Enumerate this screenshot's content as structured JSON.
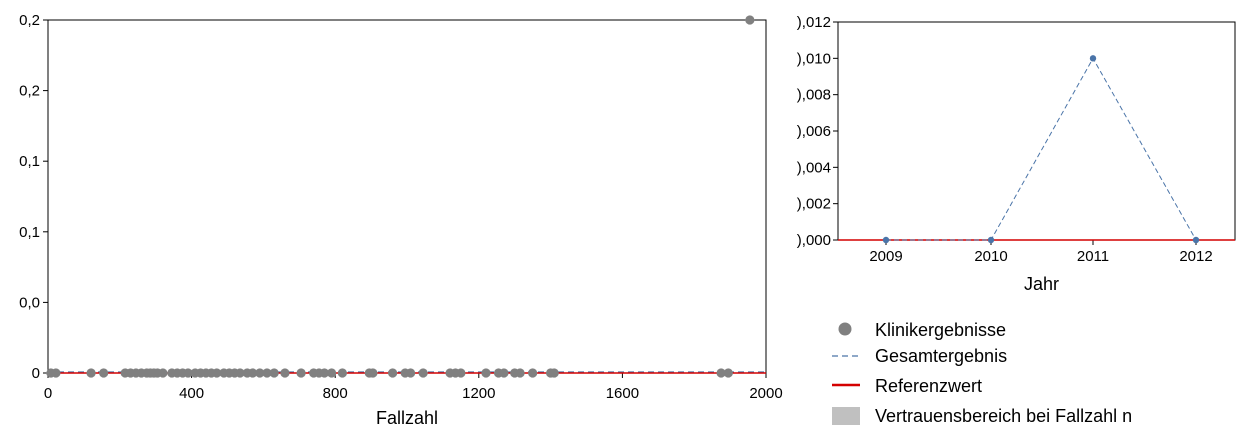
{
  "chart_data": [
    {
      "type": "scatter",
      "xlabel": "Fallzahl",
      "ylabel": "",
      "xlim": [
        0,
        2000
      ],
      "ylim": [
        0,
        0.25
      ],
      "x_ticks": [
        0,
        400,
        800,
        1200,
        1600,
        2000
      ],
      "x_tick_labels": [
        "0",
        "400",
        "800",
        "1200",
        "1600",
        "2000"
      ],
      "y_ticks": [
        0,
        0.05,
        0.1,
        0.15,
        0.2,
        0.25
      ],
      "y_tick_labels": [
        "0",
        "0,0",
        "0,1",
        "0,1",
        "0,2",
        "0,2"
      ],
      "reference_value": 0,
      "overall_value": 0,
      "series": [
        {
          "name": "Klinikergebnisse",
          "points": [
            [
              8,
              0
            ],
            [
              22,
              0
            ],
            [
              120,
              0
            ],
            [
              155,
              0
            ],
            [
              215,
              0
            ],
            [
              230,
              0
            ],
            [
              245,
              0
            ],
            [
              260,
              0
            ],
            [
              275,
              0
            ],
            [
              285,
              0
            ],
            [
              295,
              0
            ],
            [
              305,
              0
            ],
            [
              320,
              0
            ],
            [
              345,
              0
            ],
            [
              360,
              0
            ],
            [
              375,
              0
            ],
            [
              390,
              0
            ],
            [
              410,
              0
            ],
            [
              425,
              0
            ],
            [
              440,
              0
            ],
            [
              455,
              0
            ],
            [
              470,
              0
            ],
            [
              490,
              0
            ],
            [
              505,
              0
            ],
            [
              520,
              0
            ],
            [
              535,
              0
            ],
            [
              555,
              0
            ],
            [
              570,
              0
            ],
            [
              590,
              0
            ],
            [
              610,
              0
            ],
            [
              630,
              0
            ],
            [
              660,
              0
            ],
            [
              705,
              0
            ],
            [
              740,
              0
            ],
            [
              755,
              0
            ],
            [
              770,
              0
            ],
            [
              790,
              0
            ],
            [
              820,
              0
            ],
            [
              895,
              0
            ],
            [
              905,
              0
            ],
            [
              960,
              0
            ],
            [
              995,
              0
            ],
            [
              1010,
              0
            ],
            [
              1045,
              0
            ],
            [
              1120,
              0
            ],
            [
              1135,
              0
            ],
            [
              1150,
              0
            ],
            [
              1220,
              0
            ],
            [
              1255,
              0
            ],
            [
              1270,
              0
            ],
            [
              1300,
              0
            ],
            [
              1315,
              0
            ],
            [
              1350,
              0
            ],
            [
              1400,
              0
            ],
            [
              1410,
              0
            ],
            [
              1875,
              0
            ],
            [
              1895,
              0
            ],
            [
              1955,
              0.25
            ]
          ]
        }
      ]
    },
    {
      "type": "line",
      "xlabel": "Jahr",
      "ylabel": "",
      "categories": [
        "2009",
        "2010",
        "2011",
        "2012"
      ],
      "ylim": [
        0,
        0.012
      ],
      "y_ticks": [
        0,
        0.002,
        0.004,
        0.006,
        0.008,
        0.01,
        0.012
      ],
      "y_tick_labels": [
        "),000",
        "),002",
        "),004",
        "),006",
        "),008",
        "),010",
        "),012"
      ],
      "reference_value": 0,
      "series": [
        {
          "name": "Gesamtergebnis",
          "values": [
            0,
            0,
            0.01,
            0
          ]
        }
      ]
    }
  ],
  "legend": {
    "items": [
      {
        "label": "Klinikergebnisse",
        "kind": "dot",
        "color": "#808080"
      },
      {
        "label": "Gesamtergebnis",
        "kind": "dash",
        "color": "#4a74a8"
      },
      {
        "label": "Referenzwert",
        "kind": "line",
        "color": "#d40000"
      },
      {
        "label": "Vertrauensbereich bei Fallzahl n",
        "kind": "box",
        "color": "#c0c0c0"
      }
    ]
  },
  "colors": {
    "clinic_points": "#808080",
    "overall": "#4a74a8",
    "reference": "#d40000",
    "confidence": "#c0c0c0"
  }
}
